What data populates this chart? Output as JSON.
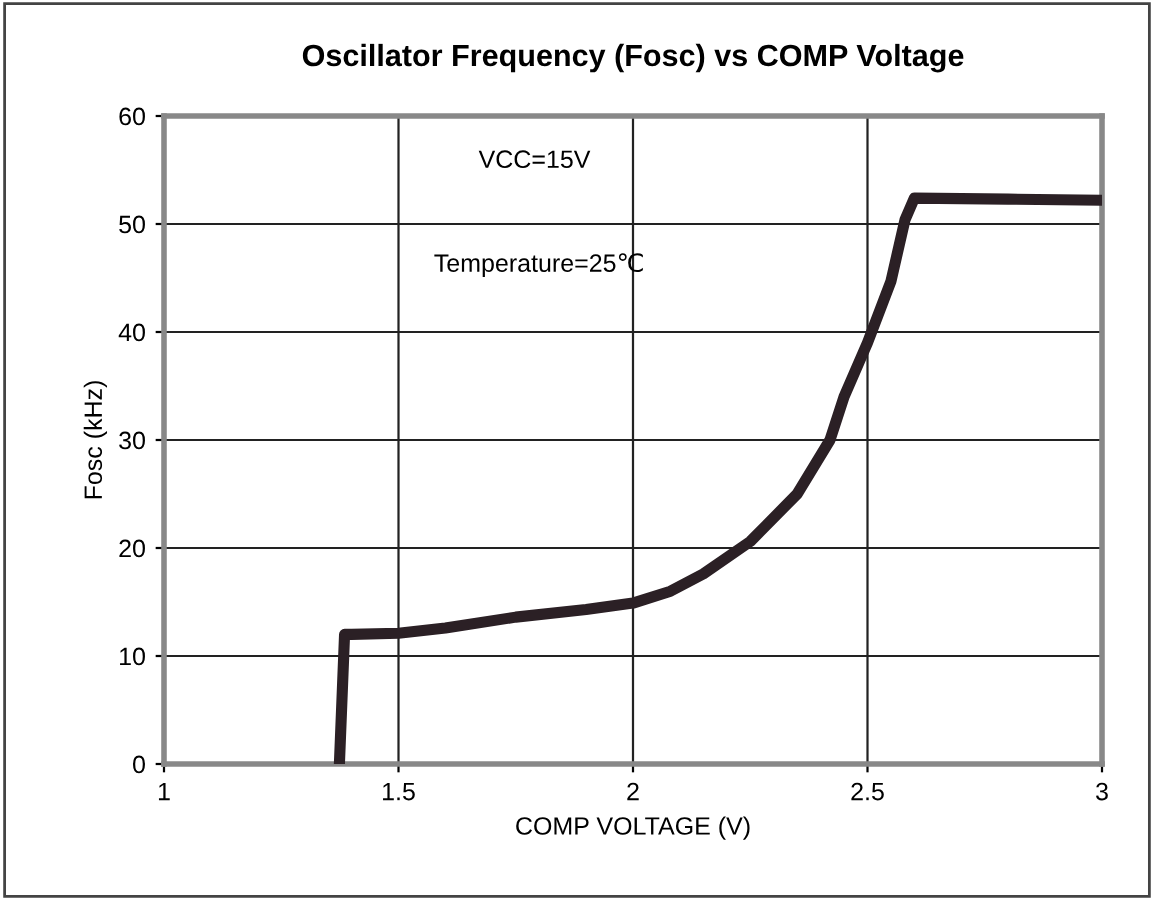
{
  "chart_data": {
    "type": "line",
    "title": "Oscillator Frequency (Fosc) vs COMP Voltage",
    "xlabel": "COMP VOLTAGE (V)",
    "ylabel": "Fosc (kHz)",
    "annotations": [
      "VCC=15V",
      "Temperature=25℃"
    ],
    "series": [
      {
        "color": "#2b2025",
        "x": [
          1.374,
          1.385,
          1.4,
          1.5,
          1.6,
          1.75,
          1.9,
          2.0,
          2.08,
          2.15,
          2.25,
          2.35,
          2.42,
          2.45,
          2.5,
          2.55,
          2.58,
          2.6,
          2.8,
          3.0
        ],
        "values": [
          0,
          12,
          12,
          12.1,
          12.6,
          13.6,
          14.3,
          14.9,
          16.0,
          17.6,
          20.6,
          25,
          30,
          34,
          39,
          44.7,
          50.4,
          52.4,
          52.3,
          52.2
        ]
      }
    ],
    "xlim": [
      1,
      3
    ],
    "ylim": [
      0,
      60
    ],
    "xticks": [
      1,
      1.5,
      2,
      2.5,
      3
    ],
    "yticks": [
      0,
      10,
      20,
      30,
      40,
      50,
      60
    ],
    "grid": true,
    "marker": "none",
    "line_style": "solid"
  }
}
